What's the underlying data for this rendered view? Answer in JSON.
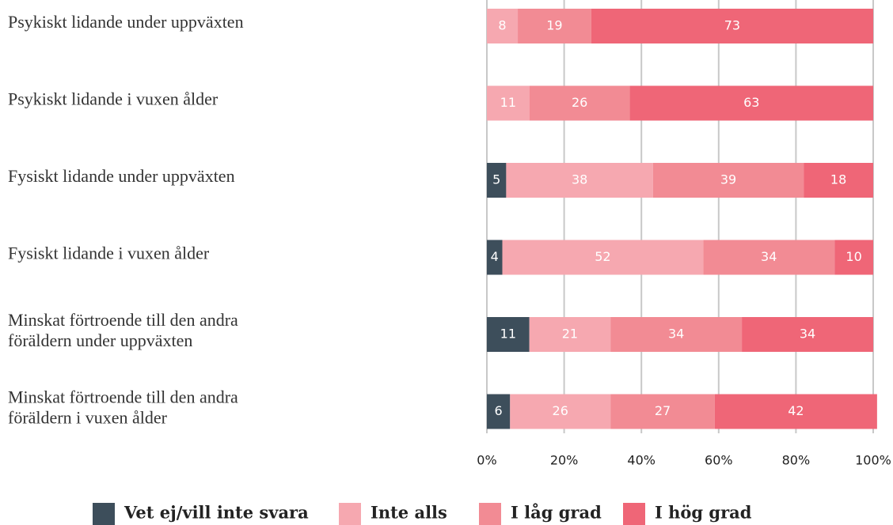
{
  "chart_data": {
    "type": "stacked_barh",
    "categories": [
      "Psykiskt lidande under uppväxten",
      "Psykiskt lidande i vuxen ålder",
      "Fysiskt lidande under uppväxten",
      "Fysiskt lidande i vuxen ålder",
      "Minskat förtroende till den andra\nföräldern under uppväxten",
      "Minskat förtroende till den andra\nföräldern i vuxen ålder"
    ],
    "series": [
      {
        "name": "Vet ej/vill inte svara",
        "color": "#3d4e5b",
        "values": [
          null,
          null,
          5,
          4,
          11,
          6
        ]
      },
      {
        "name": "Inte alls",
        "color": "#f6a8b0",
        "values": [
          8,
          11,
          38,
          52,
          21,
          26
        ]
      },
      {
        "name": "I låg grad",
        "color": "#f28b94",
        "values": [
          19,
          26,
          39,
          34,
          34,
          27
        ]
      },
      {
        "name": "I hög grad",
        "color": "#ef6677",
        "values": [
          73,
          63,
          18,
          10,
          34,
          42
        ]
      }
    ],
    "xlim": [
      0,
      100
    ],
    "xticks": [
      {
        "value": 0,
        "label": "0%"
      },
      {
        "value": 20,
        "label": "20%"
      },
      {
        "value": 40,
        "label": "40%"
      },
      {
        "value": 60,
        "label": "60%"
      },
      {
        "value": 80,
        "label": "80%"
      },
      {
        "value": 100,
        "label": "100%"
      }
    ],
    "grid": true
  }
}
